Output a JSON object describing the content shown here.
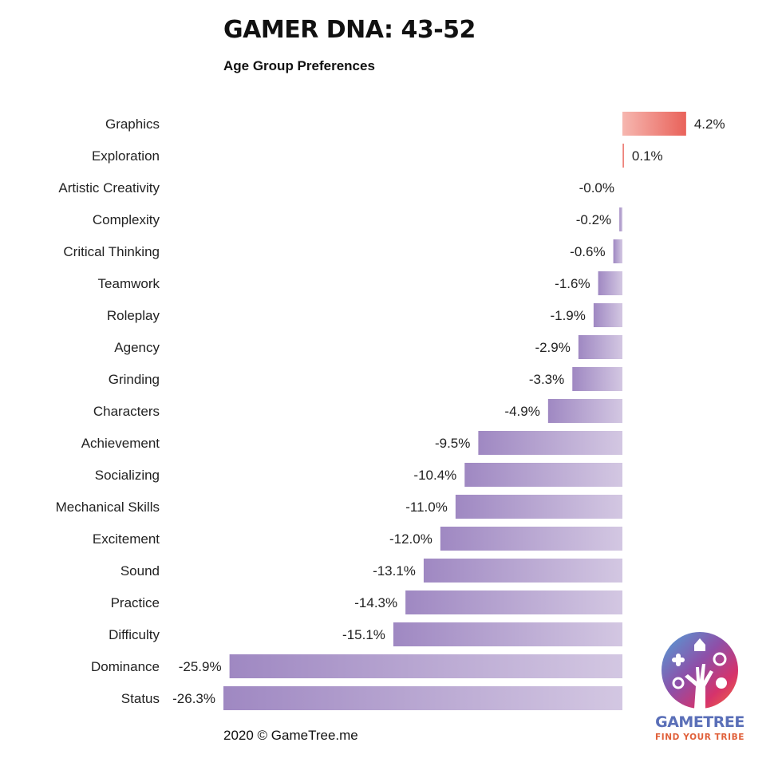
{
  "header": {
    "title": "GAMER DNA: 43-52",
    "subtitle": "Age Group Preferences"
  },
  "footer": {
    "copyright": "2020 © GameTree.me"
  },
  "logo": {
    "word": "GAMETREE",
    "tagline": "FIND YOUR TRIBE"
  },
  "colors": {
    "positive_start": "#f6b7b0",
    "positive_end": "#e9625a",
    "negative_start": "#9f88c2",
    "negative_end": "#d3c7e2"
  },
  "chart_data": {
    "type": "bar",
    "orientation": "horizontal",
    "categories": [
      "Graphics",
      "Exploration",
      "Artistic Creativity",
      "Complexity",
      "Critical Thinking",
      "Teamwork",
      "Roleplay",
      "Agency",
      "Grinding",
      "Characters",
      "Achievement",
      "Socializing",
      "Mechanical Skills",
      "Excitement",
      "Sound",
      "Practice",
      "Difficulty",
      "Dominance",
      "Status"
    ],
    "values": [
      4.2,
      0.1,
      -0.0,
      -0.2,
      -0.6,
      -1.6,
      -1.9,
      -2.9,
      -3.3,
      -4.9,
      -9.5,
      -10.4,
      -11.0,
      -12.0,
      -13.1,
      -14.3,
      -15.1,
      -25.9,
      -26.3
    ],
    "value_labels": [
      "4.2%",
      "0.1%",
      "-0.0%",
      "-0.2%",
      "-0.6%",
      "-1.6%",
      "-1.9%",
      "-2.9%",
      "-3.3%",
      "-4.9%",
      "-9.5%",
      "-10.4%",
      "-11.0%",
      "-12.0%",
      "-13.1%",
      "-14.3%",
      "-15.1%",
      "-25.9%",
      "-26.3%"
    ],
    "unit": "%",
    "xlim": [
      -26.3,
      4.2
    ],
    "grid": false,
    "legend": "none"
  }
}
